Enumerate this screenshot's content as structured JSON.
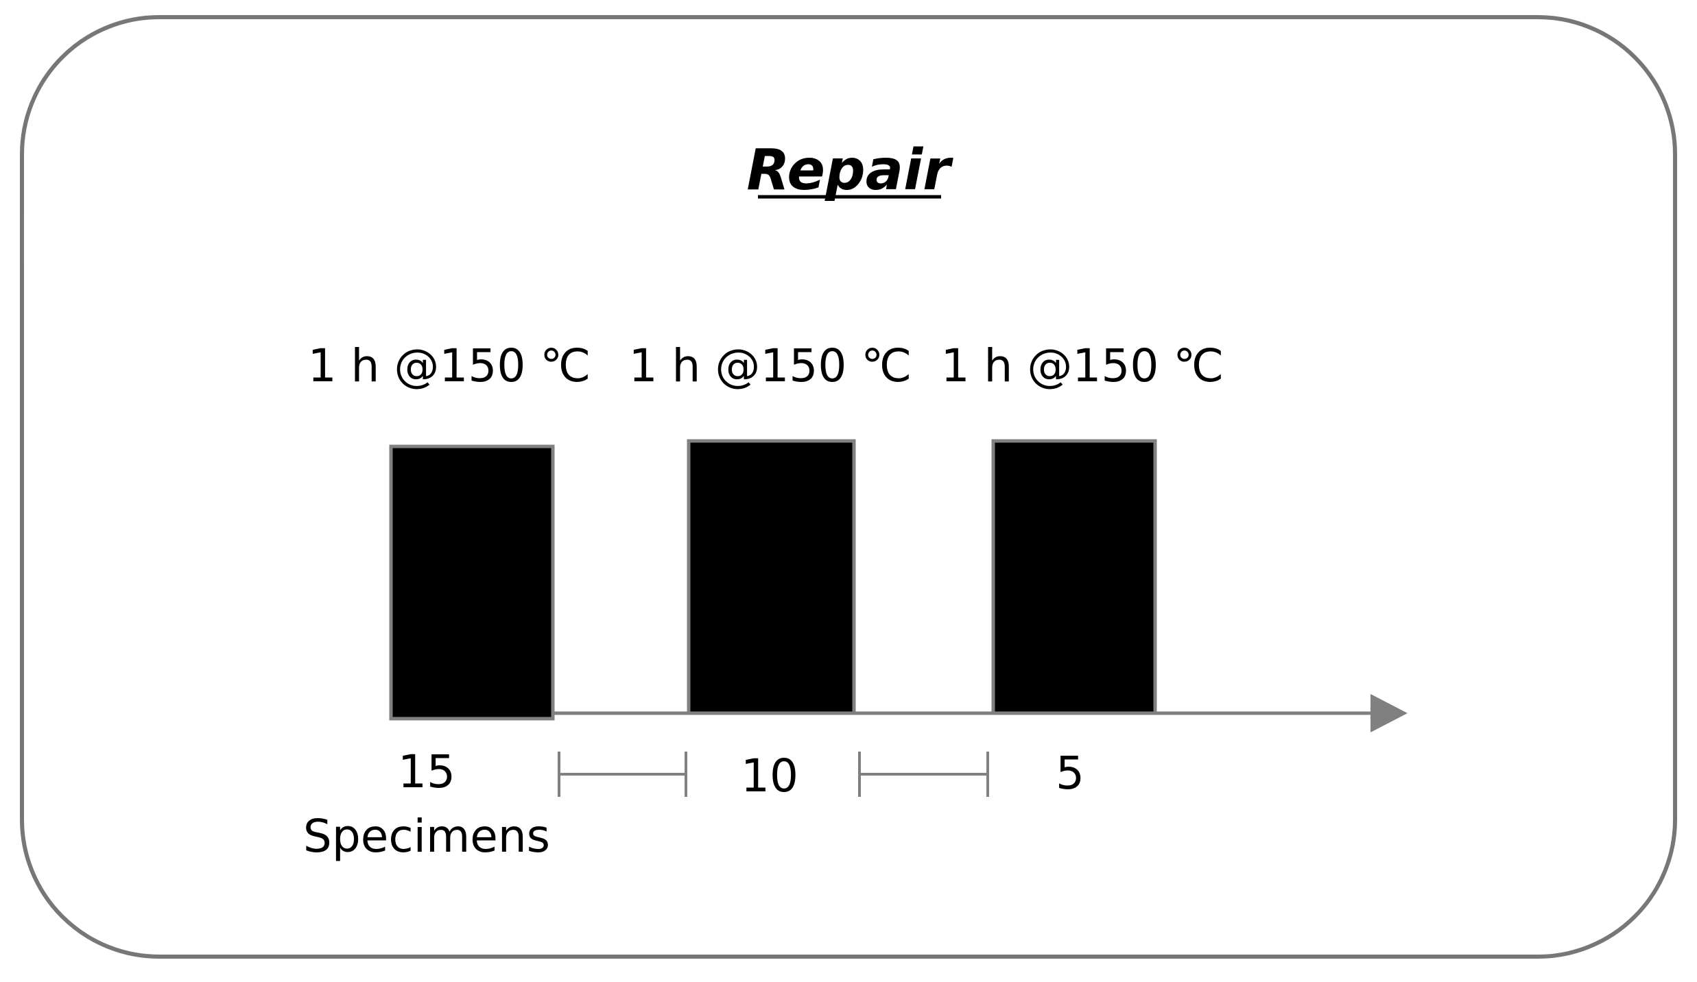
{
  "title": "Repair",
  "colors": {
    "frame": "#777777",
    "block_fill": "#000000",
    "block_stroke": "#808080",
    "axis": "#808080"
  },
  "steps": [
    {
      "condition": "1 h @150 ℃",
      "specimens": "15"
    },
    {
      "condition": "1 h @150 ℃",
      "specimens": "10"
    },
    {
      "condition": "1 h @150 ℃",
      "specimens": "5"
    }
  ],
  "specimens_label": "Specimens"
}
